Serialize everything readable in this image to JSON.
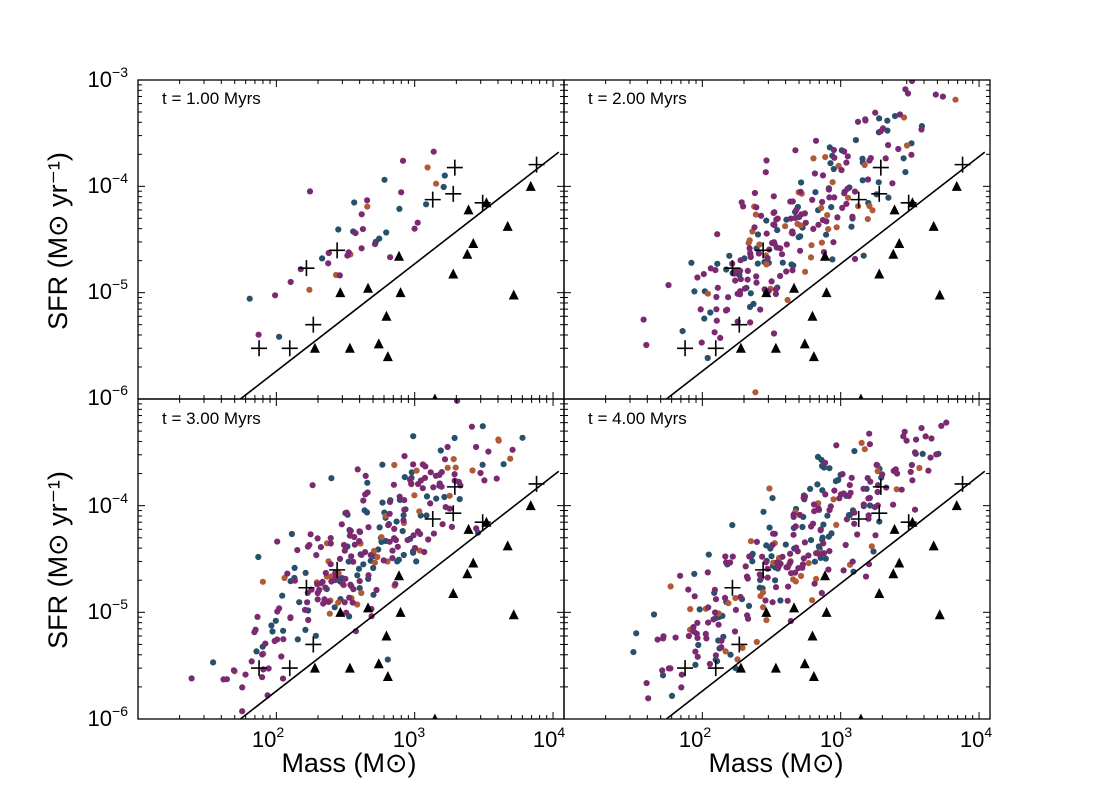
{
  "chart_data": {
    "type": "scatter",
    "layout": "2x2 grid of panels with shared axes",
    "xscale": "log",
    "yscale": "log",
    "xlim": [
      10,
      12000
    ],
    "ylim": [
      1e-06,
      0.001
    ],
    "xlabel": "Mass (M⊙)",
    "ylabel": "SFR (M⊙ yr⁻¹)",
    "xtick_labels": [
      {
        "value": 100,
        "base": "10",
        "exp": "2"
      },
      {
        "value": 1000,
        "base": "10",
        "exp": "3"
      },
      {
        "value": 10000,
        "base": "10",
        "exp": "4"
      }
    ],
    "ytick_labels": [
      {
        "value": 1e-06,
        "base": "10",
        "exp": "−6"
      },
      {
        "value": 1e-05,
        "base": "10",
        "exp": "−5"
      },
      {
        "value": 0.0001,
        "base": "10",
        "exp": "−4"
      },
      {
        "value": 0.001,
        "base": "10",
        "exp": "−3"
      }
    ],
    "colors": {
      "purple": "#7b2a72",
      "blue": "#27506b",
      "orange": "#b15a38",
      "marker": "#000000",
      "line": "#000000"
    },
    "reference_line": {
      "points": [
        [
          55,
          1e-06
        ],
        [
          11000,
          0.00021
        ]
      ]
    },
    "crosses": [
      [
        75,
        3e-06
      ],
      [
        125,
        3e-06
      ],
      [
        185,
        5e-06
      ],
      [
        165,
        1.7e-05
      ],
      [
        275,
        2.5e-05
      ],
      [
        1350,
        7.5e-05
      ],
      [
        1900,
        8.5e-05
      ],
      [
        3100,
        7e-05
      ],
      [
        1950,
        0.00015
      ],
      [
        7600,
        0.00016
      ]
    ],
    "triangles": [
      [
        190,
        3e-06
      ],
      [
        340,
        3e-06
      ],
      [
        550,
        3.3e-06
      ],
      [
        640,
        2.5e-06
      ],
      [
        625,
        6e-06
      ],
      [
        290,
        1e-05
      ],
      [
        460,
        1.1e-05
      ],
      [
        790,
        1e-05
      ],
      [
        770,
        2.2e-05
      ],
      [
        1900,
        1.5e-05
      ],
      [
        2400,
        2.3e-05
      ],
      [
        2650,
        2.9e-05
      ],
      [
        2450,
        6e-05
      ],
      [
        3300,
        7e-05
      ],
      [
        4700,
        4.2e-05
      ],
      [
        5200,
        9.5e-06
      ],
      [
        6900,
        0.0001
      ],
      [
        1400,
        1e-06
      ]
    ],
    "panels": [
      {
        "title": "t = 1.00 Myrs",
        "n_purple": 22,
        "n_blue": 14,
        "n_orange": 6,
        "spread": 0.26,
        "mass_range": [
          30,
          7000
        ]
      },
      {
        "title": "t = 2.00 Myrs",
        "n_purple": 140,
        "n_blue": 70,
        "n_orange": 40,
        "spread": 0.3,
        "mass_range": [
          20,
          12000
        ]
      },
      {
        "title": "t = 3.00 Myrs",
        "n_purple": 160,
        "n_blue": 90,
        "n_orange": 40,
        "spread": 0.33,
        "mass_range": [
          18,
          12000
        ]
      },
      {
        "title": "t = 4.00 Myrs",
        "n_purple": 170,
        "n_blue": 95,
        "n_orange": 42,
        "spread": 0.3,
        "mass_range": [
          18,
          12000
        ]
      }
    ]
  }
}
